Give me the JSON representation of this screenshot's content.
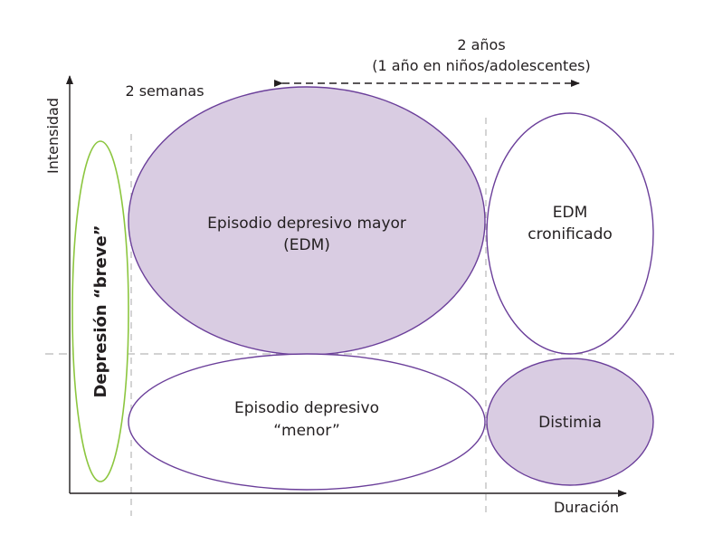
{
  "colors": {
    "purple_stroke": "#6b3f9a",
    "purple_fill": "#d9cce2",
    "green_stroke": "#8cc63f",
    "axis": "#231f20",
    "dashed": "#b8b8b8"
  },
  "axes": {
    "y_label": "Intensidad",
    "x_label": "Duración"
  },
  "annotations": {
    "two_weeks": "2 semanas",
    "two_years_line1": "2 años",
    "two_years_line2": "(1 año en niños/adolescentes)"
  },
  "regions": {
    "brief": {
      "label": "Depresión “breve”"
    },
    "major": {
      "line1": "Episodio depresivo mayor",
      "line2": "(EDM)"
    },
    "chronic": {
      "line1": "EDM",
      "line2": "cronificado"
    },
    "minor": {
      "line1": "Episodio depresivo",
      "line2": "“menor”"
    },
    "dysthymia": {
      "label": "Distimia"
    }
  }
}
